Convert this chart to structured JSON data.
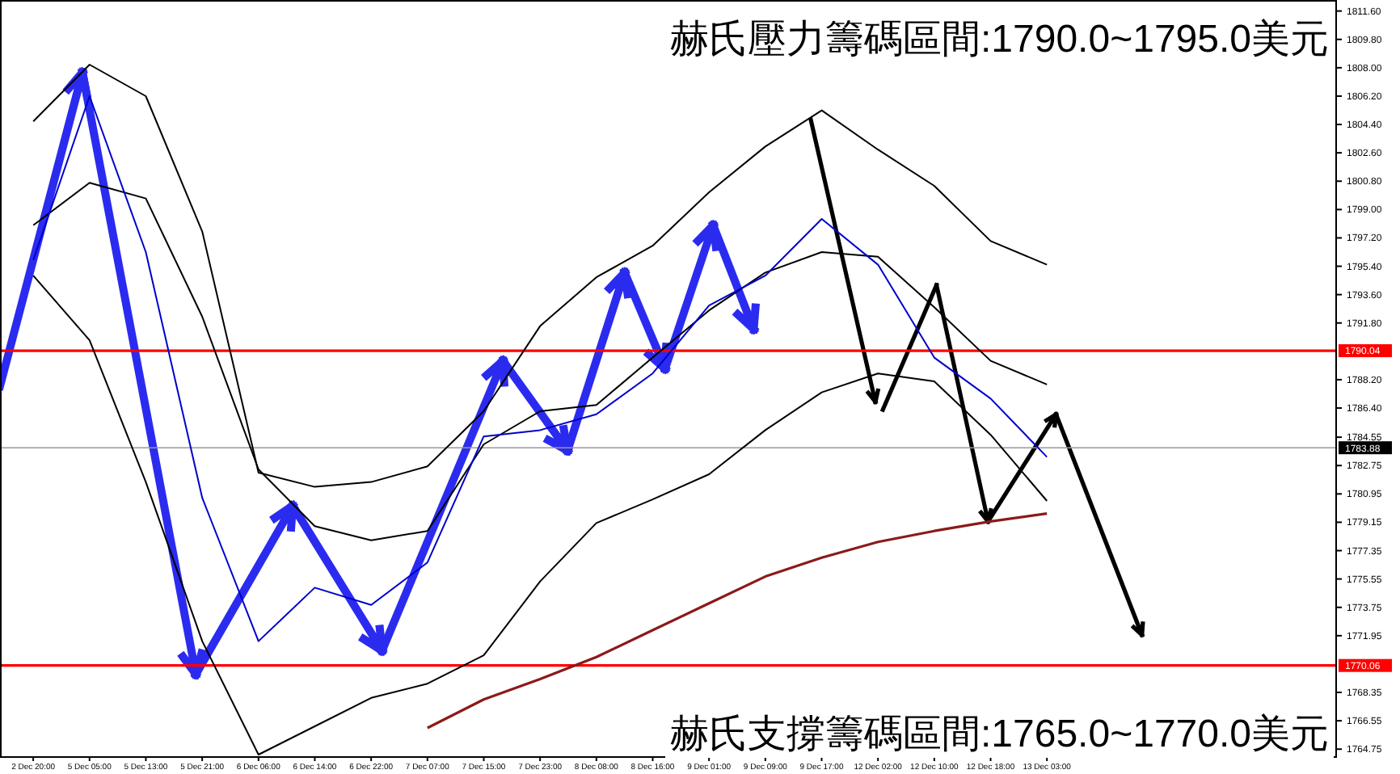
{
  "chart_data": {
    "type": "line",
    "ylim": [
      1764.3,
      1812.3
    ],
    "grid": false,
    "marker": "none",
    "line_style": "solid",
    "categories": [
      "2 Dec 20:00",
      "5 Dec 05:00",
      "5 Dec 13:00",
      "5 Dec 21:00",
      "6 Dec 06:00",
      "6 Dec 14:00",
      "6 Dec 22:00",
      "7 Dec 07:00",
      "7 Dec 15:00",
      "7 Dec 23:00",
      "8 Dec 08:00",
      "8 Dec 16:00",
      "9 Dec 01:00",
      "9 Dec 09:00",
      "9 Dec 17:00",
      "12 Dec 02:00",
      "12 Dec 10:00",
      "12 Dec 18:00",
      "13 Dec 03:00"
    ],
    "yticks": [
      {
        "value": 1811.6,
        "label": "1811.60"
      },
      {
        "value": 1809.8,
        "label": "1809.80"
      },
      {
        "value": 1808,
        "label": "1808.00"
      },
      {
        "value": 1806.2,
        "label": "1806.20"
      },
      {
        "value": 1804.4,
        "label": "1804.40"
      },
      {
        "value": 1802.6,
        "label": "1802.60"
      },
      {
        "value": 1800.8,
        "label": "1800.80"
      },
      {
        "value": 1799,
        "label": "1799.00"
      },
      {
        "value": 1797.2,
        "label": "1797.20"
      },
      {
        "value": 1795.4,
        "label": "1795.40"
      },
      {
        "value": 1793.6,
        "label": "1793.60"
      },
      {
        "value": 1791.8,
        "label": "1791.80"
      },
      {
        "value": 1788.2,
        "label": "1788.20"
      },
      {
        "value": 1786.4,
        "label": "1786.40"
      },
      {
        "value": 1784.55,
        "label": "1784.55"
      },
      {
        "value": 1782.75,
        "label": "1782.75"
      },
      {
        "value": 1780.95,
        "label": "1780.95"
      },
      {
        "value": 1779.15,
        "label": "1779.15"
      },
      {
        "value": 1777.35,
        "label": "1777.35"
      },
      {
        "value": 1775.55,
        "label": "1775.55"
      },
      {
        "value": 1773.75,
        "label": "1773.75"
      },
      {
        "value": 1771.95,
        "label": "1771.95"
      },
      {
        "value": 1768.35,
        "label": "1768.35"
      },
      {
        "value": 1766.55,
        "label": "1766.55"
      },
      {
        "value": 1764.75,
        "label": "1764.75"
      }
    ],
    "series": [
      {
        "color": "#000000",
        "values": [
          1804.6,
          1808.2,
          1806.2,
          1797.6,
          1782.3,
          1781.4,
          1781.7,
          1782.7,
          1786.2,
          1791.6,
          1794.7,
          1796.7,
          1800.1,
          1803.0,
          1805.3,
          1802.8,
          1800.5,
          1797.0,
          1795.5
        ]
      },
      {
        "color": "#000000",
        "values": [
          1798.0,
          1800.7,
          1799.7,
          1792.2,
          1782.5,
          1778.9,
          1778.0,
          1778.6,
          1784.1,
          1786.2,
          1786.6,
          1789.6,
          1792.6,
          1795.0,
          1796.3,
          1796.0,
          1792.8,
          1789.4,
          1787.9
        ]
      },
      {
        "color": "#000000",
        "values": [
          1794.8,
          1790.7,
          1781.7,
          1771.6,
          1764.4,
          1766.2,
          1768.0,
          1768.9,
          1770.7,
          1775.4,
          1779.1,
          1780.6,
          1782.2,
          1785.0,
          1787.4,
          1788.6,
          1788.1,
          1784.7,
          1780.5
        ]
      },
      {
        "color": "#0000cc",
        "values": [
          1795.8,
          1806.2,
          1796.3,
          1780.7,
          1771.6,
          1775.0,
          1773.9,
          1776.6,
          1784.6,
          1785.0,
          1786.0,
          1788.6,
          1792.9,
          1794.8,
          1798.4,
          1795.5,
          1789.6,
          1787.0,
          1783.3
        ]
      },
      {
        "color": "#8b1a1a",
        "values": [
          null,
          null,
          null,
          null,
          null,
          null,
          null,
          1766.1,
          1767.9,
          1769.2,
          1770.6,
          1772.3,
          1774.0,
          1775.7,
          1776.9,
          1777.9,
          1778.6,
          1779.2,
          1779.7
        ]
      }
    ],
    "ref_lines": [
      {
        "axis": "y",
        "value": 1790.04,
        "label": "1790.04",
        "color": "#ff0000"
      },
      {
        "axis": "y",
        "value": 1770.06,
        "label": "1770.06",
        "color": "#ff0000"
      },
      {
        "axis": "y",
        "value": 1783.88,
        "label": "1783.88",
        "color": "#999999"
      }
    ],
    "annotations": [
      "赫氏壓力籌碼區間:1790.0~1795.0美元",
      "赫氏支撐籌碼區間:1765.0~1770.0美元"
    ]
  }
}
